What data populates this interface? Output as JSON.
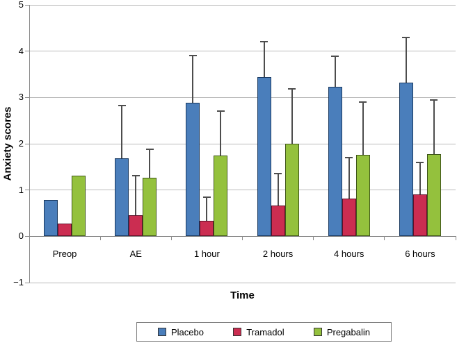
{
  "chart_data": {
    "type": "bar",
    "title": "",
    "xlabel": "Time",
    "ylabel": "Anxiety scores",
    "ylim": [
      -1,
      5
    ],
    "yticks": [
      5,
      4,
      3,
      2,
      1,
      0,
      -1
    ],
    "grid": true,
    "legend_position": "bottom",
    "categories": [
      "Preop",
      "AE",
      "1 hour",
      "2 hours",
      "4 hours",
      "6 hours"
    ],
    "series": [
      {
        "name": "Placebo",
        "fill": "#4a7ebb",
        "stroke": "#17375e",
        "values": [
          0.79,
          1.68,
          2.88,
          3.44,
          3.23,
          3.32
        ],
        "error_top": [
          null,
          2.83,
          3.9,
          4.21,
          3.89,
          4.3
        ]
      },
      {
        "name": "Tramadol",
        "fill": "#cb2d51",
        "stroke": "#5e1028",
        "values": [
          0.27,
          0.46,
          0.34,
          0.66,
          0.81,
          0.91
        ],
        "error_top": [
          null,
          1.31,
          0.84,
          1.36,
          1.7,
          1.6
        ]
      },
      {
        "name": "Pregabalin",
        "fill": "#94c13d",
        "stroke": "#3f5619",
        "values": [
          1.31,
          1.26,
          1.75,
          2.0,
          1.76,
          1.78
        ],
        "error_top": [
          null,
          1.88,
          2.7,
          3.18,
          2.9,
          2.95
        ]
      }
    ]
  }
}
